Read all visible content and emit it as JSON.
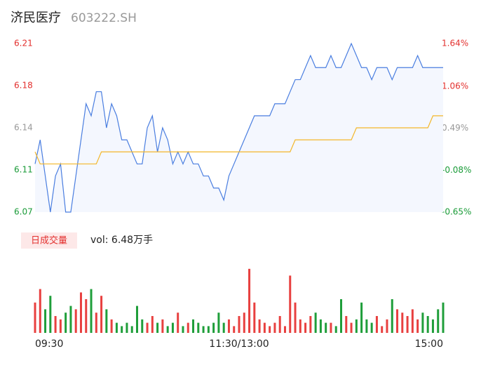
{
  "chart_data": {
    "type": "intraday",
    "title": "济民医疗",
    "subtitle": "603222.SH",
    "x": [
      0,
      3,
      6,
      9,
      12,
      15,
      18,
      21,
      24,
      27,
      30,
      33,
      36,
      39,
      42,
      45,
      48,
      51,
      54,
      57,
      60,
      63,
      66,
      69,
      72,
      75,
      78,
      81,
      84,
      87,
      90,
      93,
      96,
      99,
      102,
      105,
      108,
      111,
      114,
      117,
      120,
      123,
      126,
      129,
      132,
      135,
      138,
      141,
      144,
      147,
      150,
      153,
      156,
      159,
      162,
      165,
      168,
      171,
      174,
      177,
      180,
      183,
      186,
      189,
      192,
      195,
      198,
      201,
      204,
      207,
      210,
      213,
      216,
      219,
      222,
      225,
      228,
      231,
      234,
      237,
      240
    ],
    "xlim": [
      0,
      240
    ],
    "xticks": [
      {
        "value": 0,
        "label": "09:30"
      },
      {
        "value": 120,
        "label": "11:30/13:00"
      },
      {
        "value": 240,
        "label": "15:00"
      }
    ],
    "ylim": [
      6.07,
      6.21
    ],
    "yticks": [
      6.07,
      {
        "value": 6.105,
        "label": "6.11"
      },
      6.14,
      {
        "value": 6.175,
        "label": "6.18"
      },
      6.21
    ],
    "y2lim": [
      -0.65,
      1.64
    ],
    "y2ticks": [
      {
        "value": -0.65,
        "label": "-0.65%"
      },
      {
        "value": -0.08,
        "label": "-0.08%"
      },
      {
        "value": 0.49,
        "label": "0.49%"
      },
      {
        "value": 1.06,
        "label": "1.06%"
      },
      {
        "value": 1.64,
        "label": "1.64%"
      }
    ],
    "tick_colors": [
      "#1a9b38",
      "#1a9b38",
      "#999999",
      "#e3312f",
      "#e3312f"
    ],
    "series": [
      {
        "color": "#4a7ee0",
        "values": [
          6.11,
          6.13,
          6.1,
          6.07,
          6.1,
          6.11,
          6.07,
          6.07,
          6.1,
          6.13,
          6.16,
          6.15,
          6.17,
          6.17,
          6.14,
          6.16,
          6.15,
          6.13,
          6.13,
          6.12,
          6.11,
          6.11,
          6.14,
          6.15,
          6.12,
          6.14,
          6.13,
          6.11,
          6.12,
          6.11,
          6.12,
          6.11,
          6.11,
          6.1,
          6.1,
          6.09,
          6.09,
          6.08,
          6.1,
          6.11,
          6.12,
          6.13,
          6.14,
          6.15,
          6.15,
          6.15,
          6.15,
          6.16,
          6.16,
          6.16,
          6.17,
          6.18,
          6.18,
          6.19,
          6.2,
          6.19,
          6.19,
          6.19,
          6.2,
          6.19,
          6.19,
          6.2,
          6.21,
          6.2,
          6.19,
          6.19,
          6.18,
          6.19,
          6.19,
          6.19,
          6.18,
          6.19,
          6.19,
          6.19,
          6.19,
          6.2,
          6.19,
          6.19,
          6.19,
          6.19,
          6.19
        ]
      },
      {
        "color": "#f3b72a",
        "values": [
          6.12,
          6.11,
          6.11,
          6.11,
          6.11,
          6.11,
          6.11,
          6.11,
          6.11,
          6.11,
          6.11,
          6.11,
          6.11,
          6.12,
          6.12,
          6.12,
          6.12,
          6.12,
          6.12,
          6.12,
          6.12,
          6.12,
          6.12,
          6.12,
          6.12,
          6.12,
          6.12,
          6.12,
          6.12,
          6.12,
          6.12,
          6.12,
          6.12,
          6.12,
          6.12,
          6.12,
          6.12,
          6.12,
          6.12,
          6.12,
          6.12,
          6.12,
          6.12,
          6.12,
          6.12,
          6.12,
          6.12,
          6.12,
          6.12,
          6.12,
          6.12,
          6.13,
          6.13,
          6.13,
          6.13,
          6.13,
          6.13,
          6.13,
          6.13,
          6.13,
          6.13,
          6.13,
          6.13,
          6.14,
          6.14,
          6.14,
          6.14,
          6.14,
          6.14,
          6.14,
          6.14,
          6.14,
          6.14,
          6.14,
          6.14,
          6.14,
          6.14,
          6.14,
          6.15,
          6.15,
          6.15
        ]
      }
    ],
    "volume_label": "日成交量",
    "volume_text": "vol: 6.48万手",
    "volume": {
      "up_color": "#e8403f",
      "down_color": "#1f9e3a",
      "ylim": [
        0,
        2000
      ],
      "values": [
        900,
        1300,
        700,
        1100,
        500,
        400,
        600,
        800,
        700,
        1200,
        1000,
        1300,
        600,
        1100,
        700,
        400,
        300,
        200,
        300,
        200,
        800,
        400,
        300,
        500,
        300,
        400,
        200,
        300,
        600,
        200,
        300,
        400,
        300,
        200,
        200,
        300,
        600,
        300,
        400,
        200,
        500,
        600,
        1900,
        900,
        400,
        300,
        200,
        300,
        500,
        200,
        1700,
        900,
        400,
        300,
        500,
        600,
        400,
        300,
        300,
        200,
        1000,
        500,
        300,
        400,
        900,
        400,
        300,
        500,
        200,
        400,
        1000,
        700,
        600,
        500,
        700,
        400,
        600,
        500,
        400,
        700,
        900
      ]
    }
  }
}
